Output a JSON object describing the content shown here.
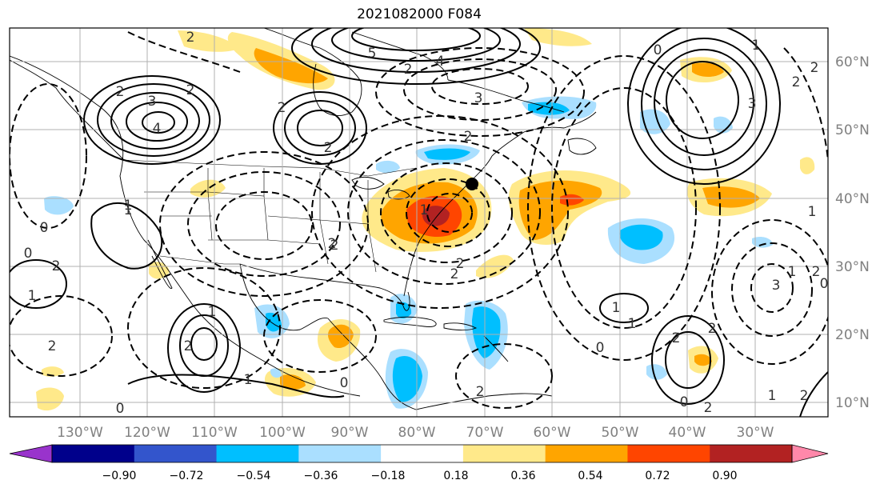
{
  "title": "2021082000 F084",
  "longitude_labels": [
    "130°W",
    "120°W",
    "110°W",
    "100°W",
    "90°W",
    "80°W",
    "70°W",
    "60°W",
    "50°W",
    "40°W",
    "30°W"
  ],
  "latitude_labels": [
    "60°N",
    "50°N",
    "40°N",
    "30°N",
    "20°N",
    "10°N"
  ],
  "colorbar": {
    "tick_labels": [
      "−0.90",
      "−0.72",
      "−0.54",
      "−0.36",
      "−0.18",
      "0.18",
      "0.36",
      "0.54",
      "0.72",
      "0.90"
    ],
    "colors": [
      "#9933cc",
      "#00008b",
      "#3355cc",
      "#00bfff",
      "#aadfff",
      "#ffffff",
      "#ffe98a",
      "#ffa500",
      "#ff4500",
      "#b22222",
      "#ff88aa"
    ]
  },
  "contour_labels": [
    "2",
    "3",
    "4",
    "2",
    "2",
    "5",
    "4",
    "2",
    "3",
    "2",
    "2",
    "2",
    "1",
    "0",
    "0",
    "2",
    "1",
    "2",
    "2",
    "1",
    "3",
    "1",
    "2",
    "0",
    "2",
    "1",
    "3",
    "1",
    "2",
    "0",
    "1",
    "1",
    "0",
    "2",
    "2",
    "0",
    "2",
    "1",
    "2",
    "1",
    "2",
    "0",
    "0",
    "1",
    "2",
    "2",
    "1",
    "2",
    "2"
  ],
  "marker": "storm-center-dot"
}
